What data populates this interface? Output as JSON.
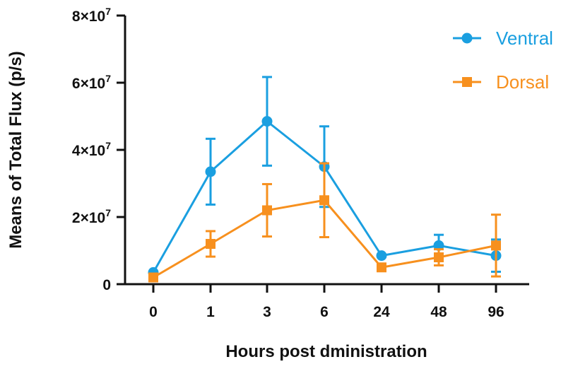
{
  "chart_data": {
    "type": "line",
    "title": "",
    "xlabel": "Hours post dministration",
    "ylabel": "Means of Total Flux (p/s)",
    "categories": [
      "0",
      "1",
      "3",
      "6",
      "24",
      "48",
      "96"
    ],
    "ylim": [
      0,
      80000000
    ],
    "y_ticks": [
      {
        "value": 0,
        "label": "0"
      },
      {
        "value": 20000000,
        "label": "2×10^7"
      },
      {
        "value": 40000000,
        "label": "4×10^7"
      },
      {
        "value": 60000000,
        "label": "6×10^7"
      },
      {
        "value": 80000000,
        "label": "8×10^7"
      }
    ],
    "legend_position": "top-right",
    "grid": false,
    "series": [
      {
        "name": "Ventral",
        "color": "#1a9fe0",
        "marker": "circle",
        "values": [
          3500000,
          33500000,
          48500000,
          35000000,
          8500000,
          11500000,
          8500000
        ],
        "error": [
          0,
          9800000,
          13200000,
          12000000,
          0,
          3200000,
          4800000
        ]
      },
      {
        "name": "Dorsal",
        "color": "#f7901e",
        "marker": "square",
        "values": [
          2000000,
          12000000,
          22000000,
          25000000,
          5000000,
          8000000,
          11500000
        ],
        "error": [
          0,
          3800000,
          7800000,
          11000000,
          0,
          2400000,
          9200000
        ]
      }
    ]
  }
}
